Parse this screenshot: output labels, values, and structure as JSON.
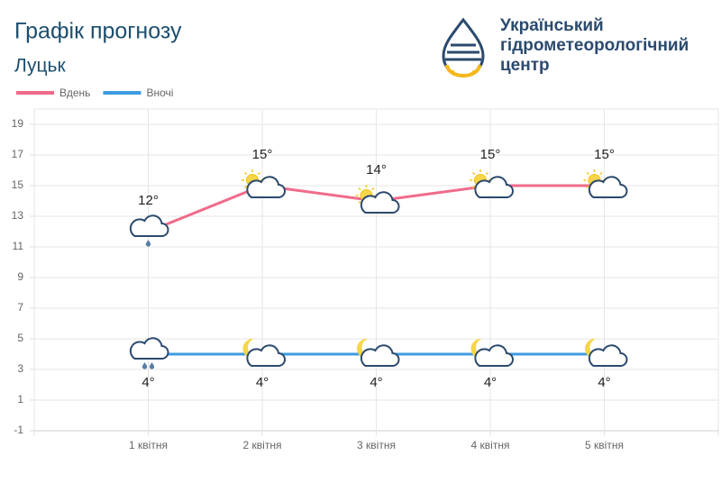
{
  "chart_data": {
    "type": "line",
    "title": "Графік прогнозу",
    "subtitle": "Луцьк",
    "organization": [
      "Український",
      "гідрометеорологічний",
      "центр"
    ],
    "categories": [
      "1 квітня",
      "2 квітня",
      "3 квітня",
      "4 квітня",
      "5 квітня"
    ],
    "series": [
      {
        "name": "Вдень",
        "color": "#f06b8a",
        "values": [
          12,
          15,
          14,
          15,
          15
        ],
        "value_labels": [
          "12°",
          "15°",
          "14°",
          "15°",
          "15°"
        ]
      },
      {
        "name": "Вночі",
        "color": "#3d9be0",
        "values": [
          4,
          4,
          4,
          4,
          4
        ],
        "value_labels": [
          "4°",
          "4°",
          "4°",
          "4°",
          "4°"
        ]
      }
    ],
    "ylim": [
      -1,
      20
    ],
    "yticks": [
      -1,
      1,
      3,
      5,
      7,
      9,
      11,
      13,
      15,
      17,
      19
    ],
    "grid": true,
    "legend": "top-left"
  }
}
